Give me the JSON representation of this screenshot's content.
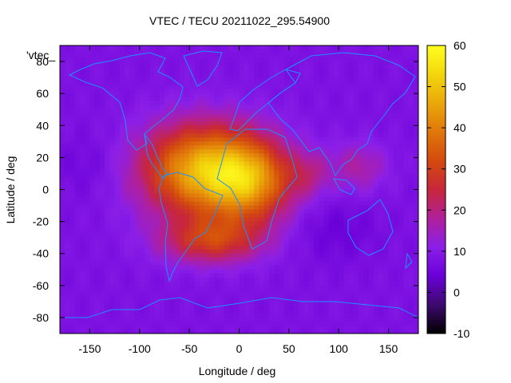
{
  "chart_data": {
    "type": "heatmap",
    "title": "VTEC / TECU 20211022_295.54900",
    "xlabel": "Longitude / deg",
    "ylabel": "Latitude / deg",
    "xlim": [
      -180,
      180
    ],
    "ylim": [
      -90,
      90
    ],
    "xticks": [
      -150,
      -100,
      -50,
      0,
      50,
      100,
      150
    ],
    "yticks": [
      -80,
      -60,
      -40,
      -20,
      0,
      20,
      40,
      60,
      80
    ],
    "colorbar": {
      "min": -10,
      "max": 60,
      "ticks": [
        -10,
        0,
        10,
        20,
        30,
        40,
        50,
        60
      ],
      "colormap": [
        "#000000",
        "#3d0a6e",
        "#6a00d8",
        "#8b1fe8",
        "#b0209a",
        "#c8263a",
        "#d34a0e",
        "#e0770a",
        "#eaa70a",
        "#f3d60c",
        "#ffff20"
      ]
    },
    "legend_label": "'vtec_",
    "legend_placement": "top-left",
    "grid": false,
    "background_value": 8,
    "anomaly_peaks": [
      {
        "lon": -38,
        "lat": 12,
        "amplitude": 38,
        "lon_sigma": 42,
        "lat_sigma": 20
      },
      {
        "lon": 12,
        "lat": 5,
        "amplitude": 27,
        "lon_sigma": 30,
        "lat_sigma": 18
      },
      {
        "lon": -28,
        "lat": -32,
        "amplitude": 20,
        "lon_sigma": 35,
        "lat_sigma": 10
      },
      {
        "lon": 120,
        "lat": 14,
        "amplitude": 9,
        "lon_sigma": 20,
        "lat_sigma": 11
      },
      {
        "lon": 70,
        "lat": 10,
        "amplitude": 8,
        "lon_sigma": 15,
        "lat_sigma": 10
      }
    ],
    "coastline_color": "#1e8fff",
    "overlay": "world coastlines"
  }
}
